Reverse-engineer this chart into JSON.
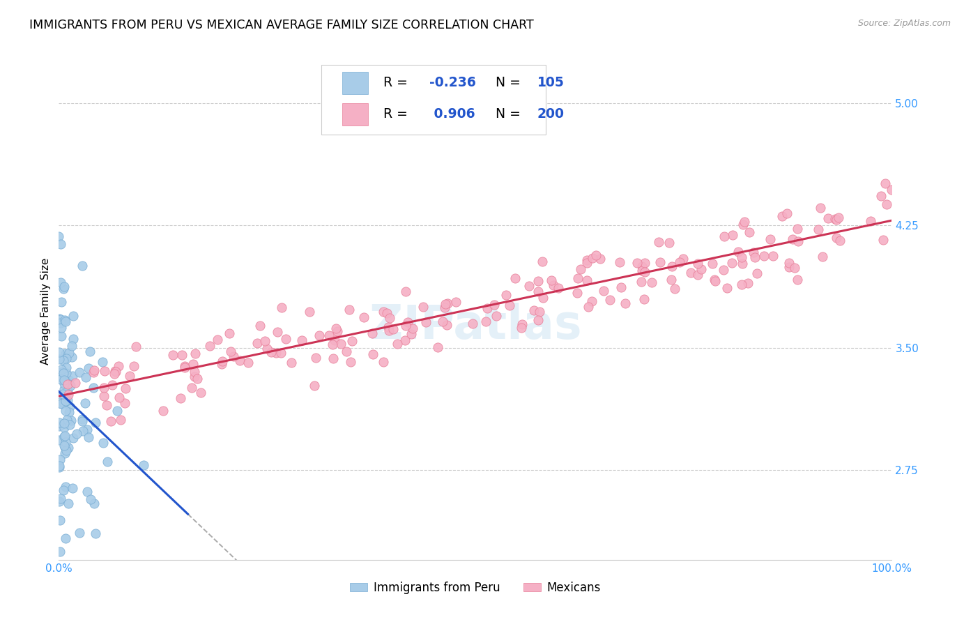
{
  "title": "IMMIGRANTS FROM PERU VS MEXICAN AVERAGE FAMILY SIZE CORRELATION CHART",
  "source": "Source: ZipAtlas.com",
  "ylabel": "Average Family Size",
  "yticks": [
    2.75,
    3.5,
    4.25,
    5.0
  ],
  "legend_label1": "Immigrants from Peru",
  "legend_label2": "Mexicans",
  "watermark": "ZIPatlas",
  "peru_color": "#a8cce8",
  "peru_edge": "#7aaed4",
  "mexico_color": "#f5b0c5",
  "mexico_edge": "#e8809a",
  "trend_peru_color": "#2255cc",
  "trend_mexico_color": "#cc3355",
  "xmin": 0.0,
  "xmax": 1.0,
  "ymin": 2.2,
  "ymax": 5.25,
  "background_color": "#ffffff",
  "grid_color": "#cccccc",
  "title_fontsize": 12.5,
  "tick_label_color": "#3399ff",
  "legend_text_color": "#2255cc"
}
